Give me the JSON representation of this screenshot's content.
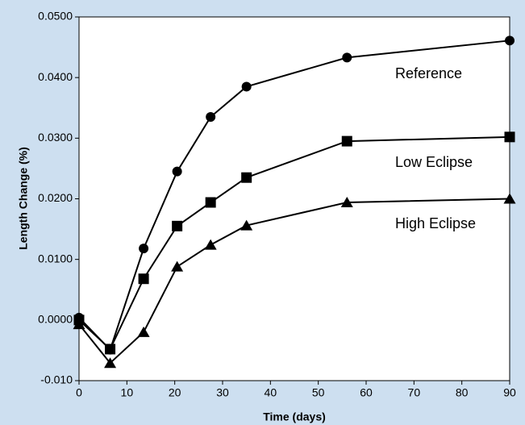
{
  "chart_data": {
    "type": "line",
    "x_label": "Time (days)",
    "y_label": "Length Change (%)",
    "x": [
      0,
      6.5,
      13.5,
      20.5,
      27.5,
      35,
      56,
      90
    ],
    "series": [
      {
        "name": "Reference",
        "color": "#000000",
        "marker": "circle",
        "values": [
          0.0004,
          -0.0049,
          0.0118,
          0.0245,
          0.0335,
          0.0385,
          0.0433,
          0.0461
        ]
      },
      {
        "name": "Low Eclipse",
        "color": "#000000",
        "marker": "square",
        "values": [
          0.0,
          -0.0048,
          0.0068,
          0.0155,
          0.0194,
          0.0235,
          0.0295,
          0.0302
        ]
      },
      {
        "name": "High Eclipse",
        "color": "#000000",
        "marker": "triangle",
        "values": [
          -0.0007,
          -0.0071,
          -0.002,
          0.0088,
          0.0124,
          0.0156,
          0.0194,
          0.02
        ]
      }
    ],
    "xlim": [
      0,
      90
    ],
    "xticks": [
      0,
      10,
      20,
      30,
      40,
      50,
      60,
      70,
      80,
      90
    ],
    "ylim": [
      -0.01,
      0.05
    ],
    "yticks": [
      {
        "value": -0.01,
        "label": "-0.010"
      },
      {
        "value": 0,
        "label": "0.0000"
      },
      {
        "value": 0.01,
        "label": "0.0100"
      },
      {
        "value": 0.02,
        "label": "0.0200"
      },
      {
        "value": 0.03,
        "label": "0.0300"
      },
      {
        "value": 0.04,
        "label": "0.0400"
      },
      {
        "value": 0.05,
        "label": "0.0500"
      }
    ],
    "grid": false
  }
}
